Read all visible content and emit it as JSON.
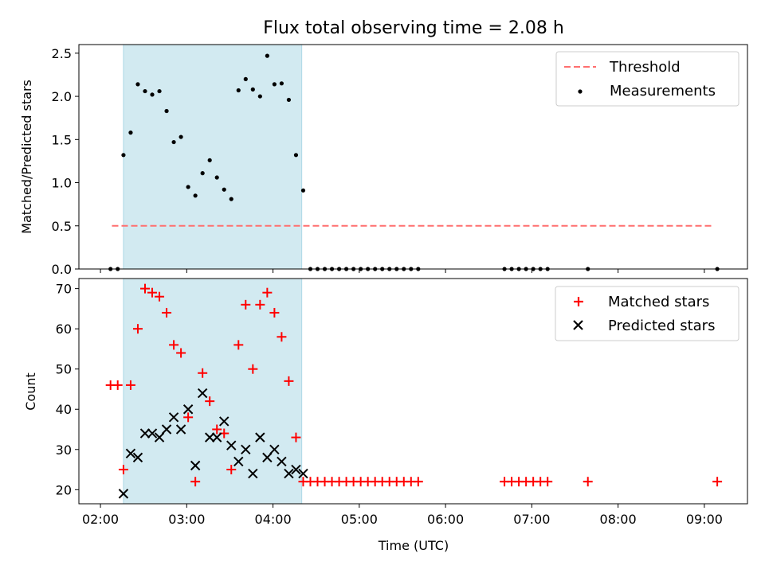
{
  "chart_data": {
    "type": "scatter",
    "title": "Flux total observing time = 2.08 h",
    "x_unit": "time of day (UTC), hours",
    "x_range": [
      "01:45",
      "09:30"
    ],
    "x_tick_labels": [
      "02:00",
      "03:00",
      "04:00",
      "05:00",
      "06:00",
      "07:00",
      "08:00",
      "09:00"
    ],
    "xlabel": "Time (UTC)",
    "shaded_span": {
      "start": "02:16",
      "end": "04:20",
      "color": "#add8e6"
    },
    "panels": [
      {
        "ylabel": "Matched/Predicted stars",
        "ylim": [
          0,
          2.6
        ],
        "y_ticks": [
          "0.0",
          "0.5",
          "1.0",
          "1.5",
          "2.0",
          "2.5"
        ],
        "legend_position": "upper right",
        "series": [
          {
            "name": "Threshold",
            "kind": "dashed-line",
            "color": "#ff6f6f",
            "y": 0.5,
            "x_range": [
              "02:08",
              "09:07"
            ]
          },
          {
            "name": "Measurements",
            "kind": "dots",
            "color": "#000000",
            "points": [
              [
                "02:07",
                0
              ],
              [
                "02:12",
                0
              ],
              [
                "02:16",
                1.32
              ],
              [
                "02:21",
                1.58
              ],
              [
                "02:26",
                2.14
              ],
              [
                "02:31",
                2.06
              ],
              [
                "02:36",
                2.02
              ],
              [
                "02:41",
                2.06
              ],
              [
                "02:46",
                1.83
              ],
              [
                "02:51",
                1.47
              ],
              [
                "02:56",
                1.53
              ],
              [
                "03:01",
                0.95
              ],
              [
                "03:06",
                0.85
              ],
              [
                "03:11",
                1.11
              ],
              [
                "03:16",
                1.26
              ],
              [
                "03:21",
                1.06
              ],
              [
                "03:26",
                0.92
              ],
              [
                "03:31",
                0.81
              ],
              [
                "03:36",
                2.07
              ],
              [
                "03:41",
                2.2
              ],
              [
                "03:46",
                2.08
              ],
              [
                "03:51",
                2.0
              ],
              [
                "03:56",
                2.47
              ],
              [
                "04:01",
                2.14
              ],
              [
                "04:06",
                2.15
              ],
              [
                "04:11",
                1.96
              ],
              [
                "04:16",
                1.32
              ],
              [
                "04:21",
                0.91
              ],
              [
                "04:26",
                0
              ],
              [
                "04:31",
                0
              ],
              [
                "04:36",
                0
              ],
              [
                "04:41",
                0
              ],
              [
                "04:46",
                0
              ],
              [
                "04:51",
                0
              ],
              [
                "04:56",
                0
              ],
              [
                "05:01",
                0
              ],
              [
                "05:06",
                0
              ],
              [
                "05:11",
                0
              ],
              [
                "05:16",
                0
              ],
              [
                "05:21",
                0
              ],
              [
                "05:26",
                0
              ],
              [
                "05:31",
                0
              ],
              [
                "05:36",
                0
              ],
              [
                "05:41",
                0
              ],
              [
                "06:41",
                0
              ],
              [
                "06:46",
                0
              ],
              [
                "06:51",
                0
              ],
              [
                "06:56",
                0
              ],
              [
                "07:01",
                0
              ],
              [
                "07:06",
                0
              ],
              [
                "07:11",
                0
              ],
              [
                "07:39",
                0
              ],
              [
                "09:09",
                0
              ]
            ]
          }
        ]
      },
      {
        "ylabel": "Count",
        "ylim": [
          16.5,
          72.5
        ],
        "y_ticks": [
          "20",
          "30",
          "40",
          "50",
          "60",
          "70"
        ],
        "legend_position": "upper right",
        "series": [
          {
            "name": "Matched stars",
            "kind": "plus",
            "color": "#ff0000",
            "points": [
              [
                "02:07",
                46
              ],
              [
                "02:12",
                46
              ],
              [
                "02:16",
                25
              ],
              [
                "02:21",
                46
              ],
              [
                "02:26",
                60
              ],
              [
                "02:31",
                70
              ],
              [
                "02:36",
                69
              ],
              [
                "02:41",
                68
              ],
              [
                "02:46",
                64
              ],
              [
                "02:51",
                56
              ],
              [
                "02:56",
                54
              ],
              [
                "03:01",
                38
              ],
              [
                "03:06",
                22
              ],
              [
                "03:11",
                49
              ],
              [
                "03:16",
                42
              ],
              [
                "03:21",
                35
              ],
              [
                "03:26",
                34
              ],
              [
                "03:31",
                25
              ],
              [
                "03:36",
                56
              ],
              [
                "03:41",
                66
              ],
              [
                "03:46",
                50
              ],
              [
                "03:51",
                66
              ],
              [
                "03:56",
                69
              ],
              [
                "04:01",
                64
              ],
              [
                "04:06",
                58
              ],
              [
                "04:11",
                47
              ],
              [
                "04:16",
                33
              ],
              [
                "04:21",
                22
              ],
              [
                "04:26",
                22
              ],
              [
                "04:31",
                22
              ],
              [
                "04:36",
                22
              ],
              [
                "04:41",
                22
              ],
              [
                "04:46",
                22
              ],
              [
                "04:51",
                22
              ],
              [
                "04:56",
                22
              ],
              [
                "05:01",
                22
              ],
              [
                "05:06",
                22
              ],
              [
                "05:11",
                22
              ],
              [
                "05:16",
                22
              ],
              [
                "05:21",
                22
              ],
              [
                "05:26",
                22
              ],
              [
                "05:31",
                22
              ],
              [
                "05:36",
                22
              ],
              [
                "05:41",
                22
              ],
              [
                "06:41",
                22
              ],
              [
                "06:46",
                22
              ],
              [
                "06:51",
                22
              ],
              [
                "06:56",
                22
              ],
              [
                "07:01",
                22
              ],
              [
                "07:06",
                22
              ],
              [
                "07:11",
                22
              ],
              [
                "07:39",
                22
              ],
              [
                "09:09",
                22
              ]
            ]
          },
          {
            "name": "Predicted stars",
            "kind": "x",
            "color": "#000000",
            "points": [
              [
                "02:16",
                19
              ],
              [
                "02:21",
                29
              ],
              [
                "02:26",
                28
              ],
              [
                "02:31",
                34
              ],
              [
                "02:36",
                34
              ],
              [
                "02:41",
                33
              ],
              [
                "02:46",
                35
              ],
              [
                "02:51",
                38
              ],
              [
                "02:56",
                35
              ],
              [
                "03:01",
                40
              ],
              [
                "03:06",
                26
              ],
              [
                "03:11",
                44
              ],
              [
                "03:16",
                33
              ],
              [
                "03:21",
                33
              ],
              [
                "03:26",
                37
              ],
              [
                "03:31",
                31
              ],
              [
                "03:36",
                27
              ],
              [
                "03:41",
                30
              ],
              [
                "03:46",
                24
              ],
              [
                "03:51",
                33
              ],
              [
                "03:56",
                28
              ],
              [
                "04:01",
                30
              ],
              [
                "04:06",
                27
              ],
              [
                "04:11",
                24
              ],
              [
                "04:16",
                25
              ],
              [
                "04:21",
                24
              ]
            ]
          }
        ]
      }
    ]
  }
}
